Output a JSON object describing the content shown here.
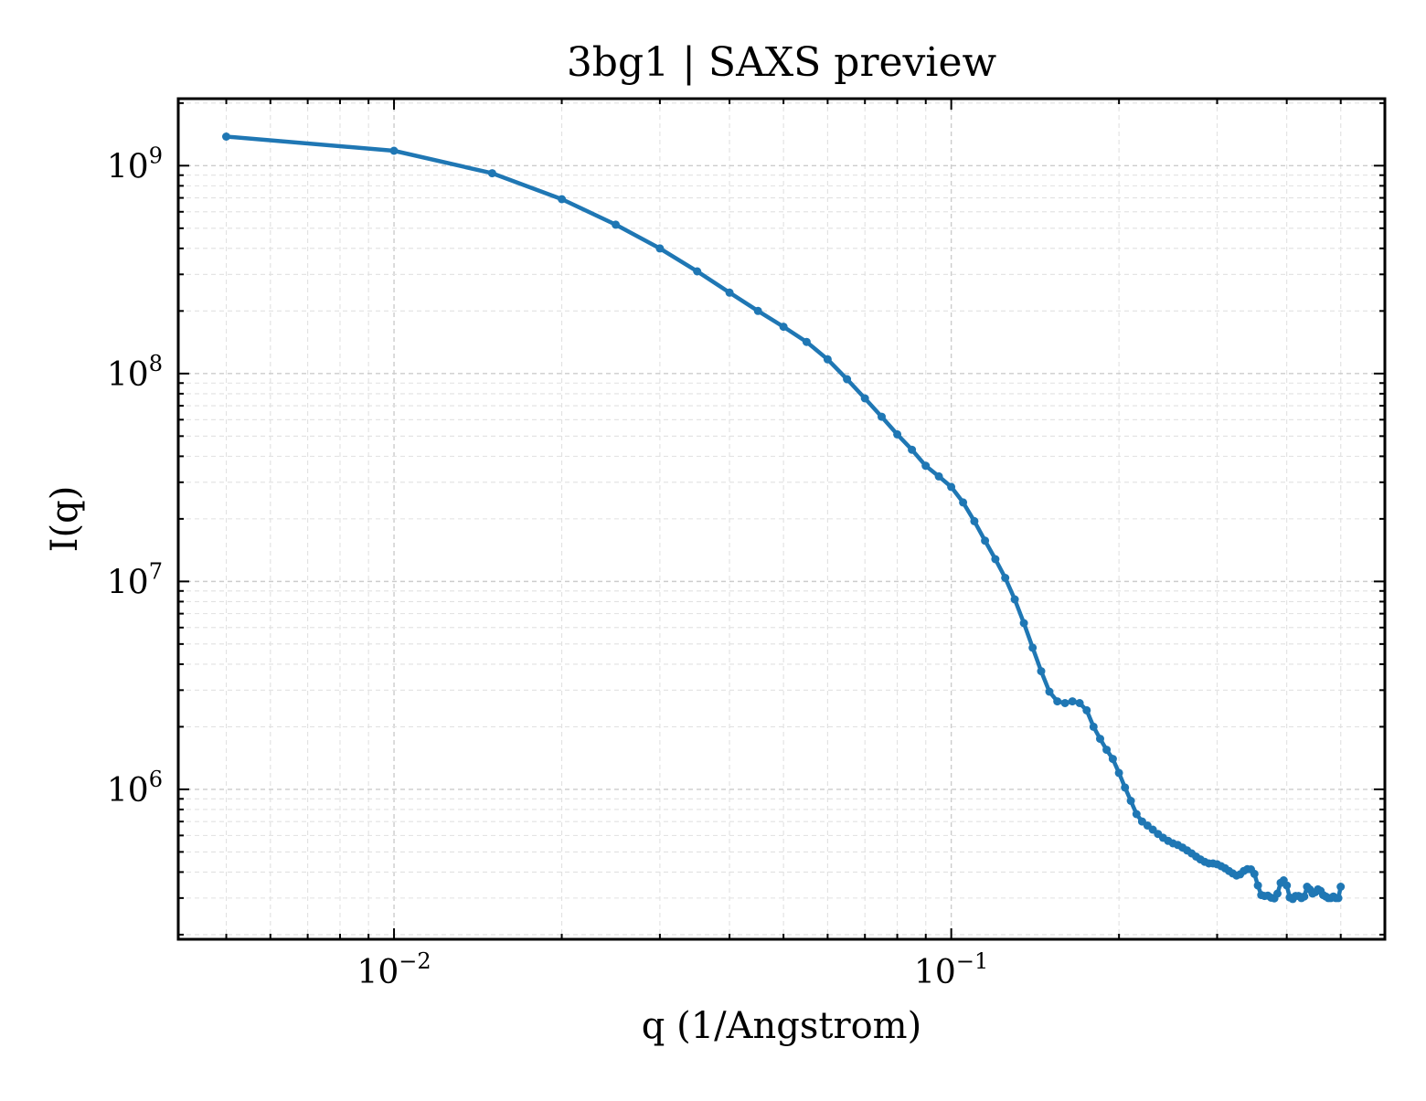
{
  "chart_data": {
    "type": "line",
    "title": "3bg1 | SAXS preview",
    "xlabel": "q (1/Angstrom)",
    "ylabel": "I(q)",
    "xscale": "log",
    "yscale": "log",
    "xlim": [
      0.0041,
      0.6
    ],
    "ylim": [
      190000,
      2100000000
    ],
    "grid": true,
    "line_color": "#1f77b4",
    "x_ticks": [
      {
        "value": 0.01,
        "base": "10",
        "exp": "−2"
      },
      {
        "value": 0.1,
        "base": "10",
        "exp": "−1"
      }
    ],
    "y_ticks": [
      {
        "value": 1000000,
        "base": "10",
        "exp": "6"
      },
      {
        "value": 10000000,
        "base": "10",
        "exp": "7"
      },
      {
        "value": 100000000,
        "base": "10",
        "exp": "8"
      },
      {
        "value": 1000000000,
        "base": "10",
        "exp": "9"
      }
    ],
    "series": [
      {
        "x": [
          0.005,
          0.01,
          0.015,
          0.02,
          0.025,
          0.03,
          0.035,
          0.04,
          0.045,
          0.05,
          0.055,
          0.06,
          0.065,
          0.07,
          0.075,
          0.08,
          0.085,
          0.09,
          0.095,
          0.1,
          0.105,
          0.11,
          0.115,
          0.12,
          0.125,
          0.13,
          0.135,
          0.14,
          0.145,
          0.15,
          0.155,
          0.16,
          0.165,
          0.17,
          0.175,
          0.18,
          0.185,
          0.19,
          0.195,
          0.2,
          0.205,
          0.21,
          0.215,
          0.22,
          0.225,
          0.23,
          0.235,
          0.24,
          0.245,
          0.25,
          0.255,
          0.26,
          0.265,
          0.27,
          0.275,
          0.28,
          0.285,
          0.29,
          0.295,
          0.3,
          0.305,
          0.31,
          0.315,
          0.32,
          0.325,
          0.33,
          0.335,
          0.34,
          0.345,
          0.35,
          0.355,
          0.36,
          0.365,
          0.37,
          0.375,
          0.38,
          0.385,
          0.39,
          0.395,
          0.4,
          0.405,
          0.41,
          0.415,
          0.42,
          0.425,
          0.43,
          0.435,
          0.44,
          0.445,
          0.45,
          0.455,
          0.46,
          0.465,
          0.47,
          0.475,
          0.48,
          0.485,
          0.49,
          0.495,
          0.5
        ],
        "y": [
          1380000000,
          1180000000,
          920000000,
          690000000,
          520000000,
          400000000,
          310000000,
          245000000,
          200000000,
          168000000,
          142000000,
          117000000,
          94000000,
          76000000,
          62000000,
          51000000,
          43000000,
          36000000,
          32000000,
          28500000,
          24000000,
          19500000,
          15700000,
          12800000,
          10400000,
          8200000,
          6300000,
          4800000,
          3700000,
          2950000,
          2650000,
          2600000,
          2650000,
          2600000,
          2400000,
          2000000,
          1750000,
          1550000,
          1400000,
          1200000,
          1020000,
          880000,
          760000,
          700000,
          670000,
          640000,
          610000,
          585000,
          565000,
          550000,
          540000,
          525000,
          508000,
          492000,
          475000,
          460000,
          448000,
          440000,
          440000,
          436000,
          427000,
          417000,
          405000,
          394000,
          385000,
          390000,
          405000,
          413000,
          412000,
          392000,
          345000,
          310000,
          307000,
          308000,
          301000,
          299000,
          315000,
          355000,
          365000,
          345000,
          302000,
          297000,
          307000,
          307000,
          300000,
          305000,
          340000,
          330000,
          315000,
          320000,
          330000,
          325000,
          310000,
          305000,
          300000,
          300000,
          305000,
          300000,
          300000,
          340000
        ]
      }
    ]
  }
}
